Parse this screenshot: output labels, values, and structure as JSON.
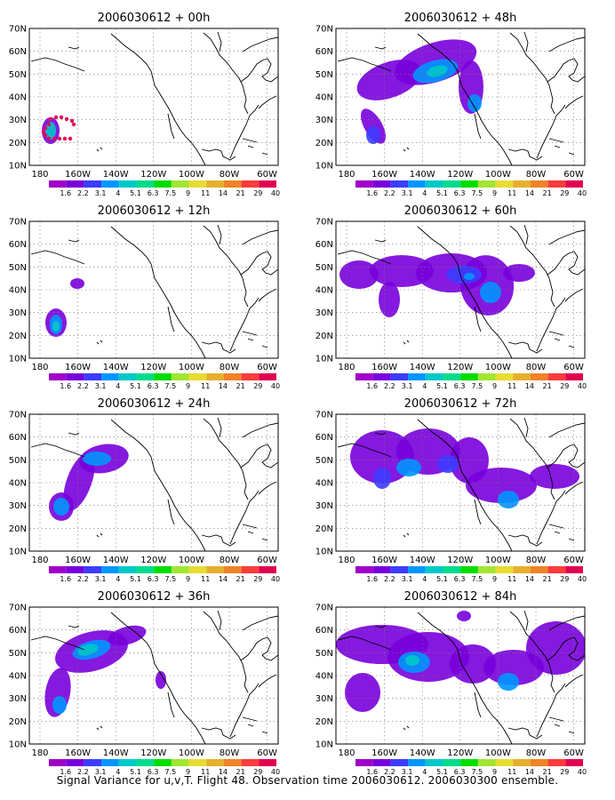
{
  "map_grid": {
    "lat_labels": [
      "70N",
      "60N",
      "50N",
      "40N",
      "30N",
      "20N",
      "10N"
    ],
    "lon_labels": [
      "180",
      "160W",
      "140W",
      "120W",
      "100W",
      "80W",
      "60W"
    ]
  },
  "color_scale": {
    "values": [
      "1.6",
      "2.2",
      "3.1",
      "4",
      "5.1",
      "6.3",
      "7.5",
      "9",
      "11",
      "14",
      "21",
      "29",
      "40"
    ],
    "colors": [
      "#a000c8",
      "#7800dc",
      "#3c3cff",
      "#0096ff",
      "#00c8c8",
      "#00dc8c",
      "#00dc00",
      "#a0e632",
      "#e6dc32",
      "#e6af2d",
      "#f08228",
      "#fa3c3c",
      "#e10050"
    ]
  },
  "panels": [
    {
      "title": "2006030612 + 00h"
    },
    {
      "title": "2006030612 + 48h"
    },
    {
      "title": "2006030612 + 12h"
    },
    {
      "title": "2006030612 + 60h"
    },
    {
      "title": "2006030612 + 24h"
    },
    {
      "title": "2006030612 + 72h"
    },
    {
      "title": "2006030612 + 36h"
    },
    {
      "title": "2006030612 + 84h"
    }
  ],
  "caption": "Signal Variance for u,v,T. Flight 48. Observation time 2006030612. 2006030300 ensemble."
}
